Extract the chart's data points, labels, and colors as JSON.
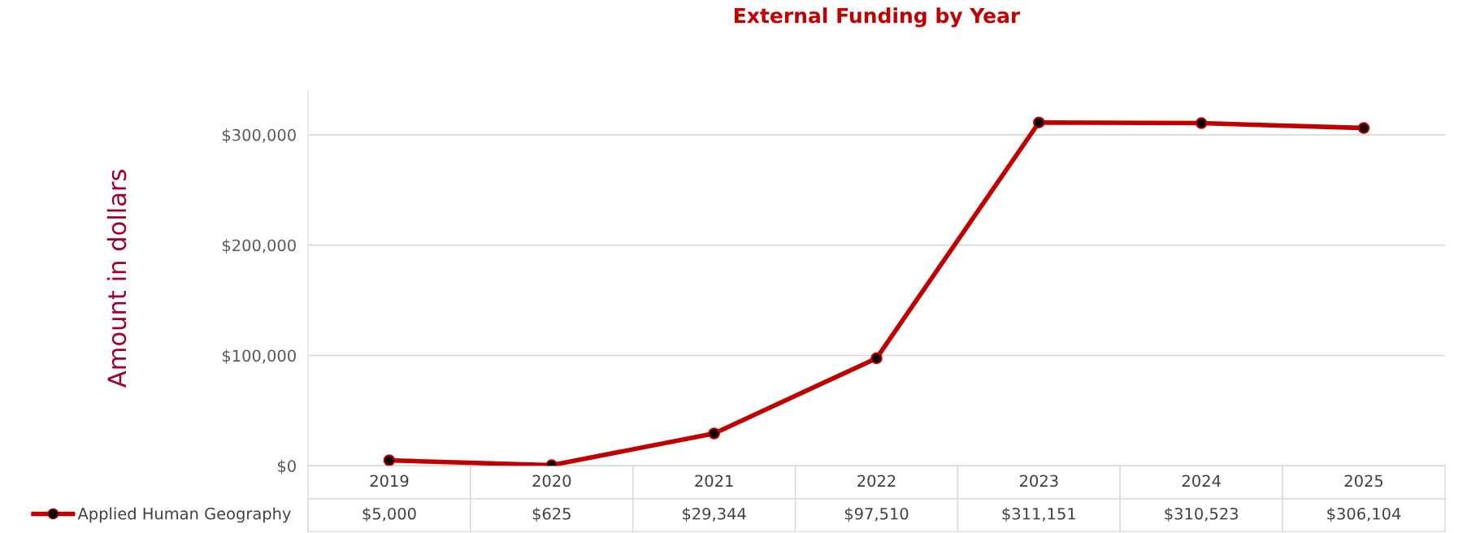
{
  "chart_data": {
    "type": "line",
    "title": "External Funding by Year",
    "ylabel": "Amount in dollars",
    "categories": [
      "2019",
      "2020",
      "2021",
      "2022",
      "2023",
      "2024",
      "2025"
    ],
    "series": [
      {
        "name": "Applied Human Geography",
        "color": "#c00000",
        "values": [
          5000,
          625,
          29344,
          97510,
          311151,
          310523,
          306104
        ],
        "value_labels": [
          "$5,000",
          "$625",
          "$29,344",
          "$97,510",
          "$311,151",
          "$310,523",
          "$306,104"
        ]
      }
    ],
    "ylim": [
      0,
      340000
    ],
    "yticks": [
      {
        "value": 0,
        "label": "$0"
      },
      {
        "value": 100000,
        "label": "$100,000"
      },
      {
        "value": 200000,
        "label": "$200,000"
      },
      {
        "value": 300000,
        "label": "$300,000"
      }
    ],
    "grid": "y",
    "marker": "circle",
    "line_style": "solid",
    "data_labels": true
  }
}
